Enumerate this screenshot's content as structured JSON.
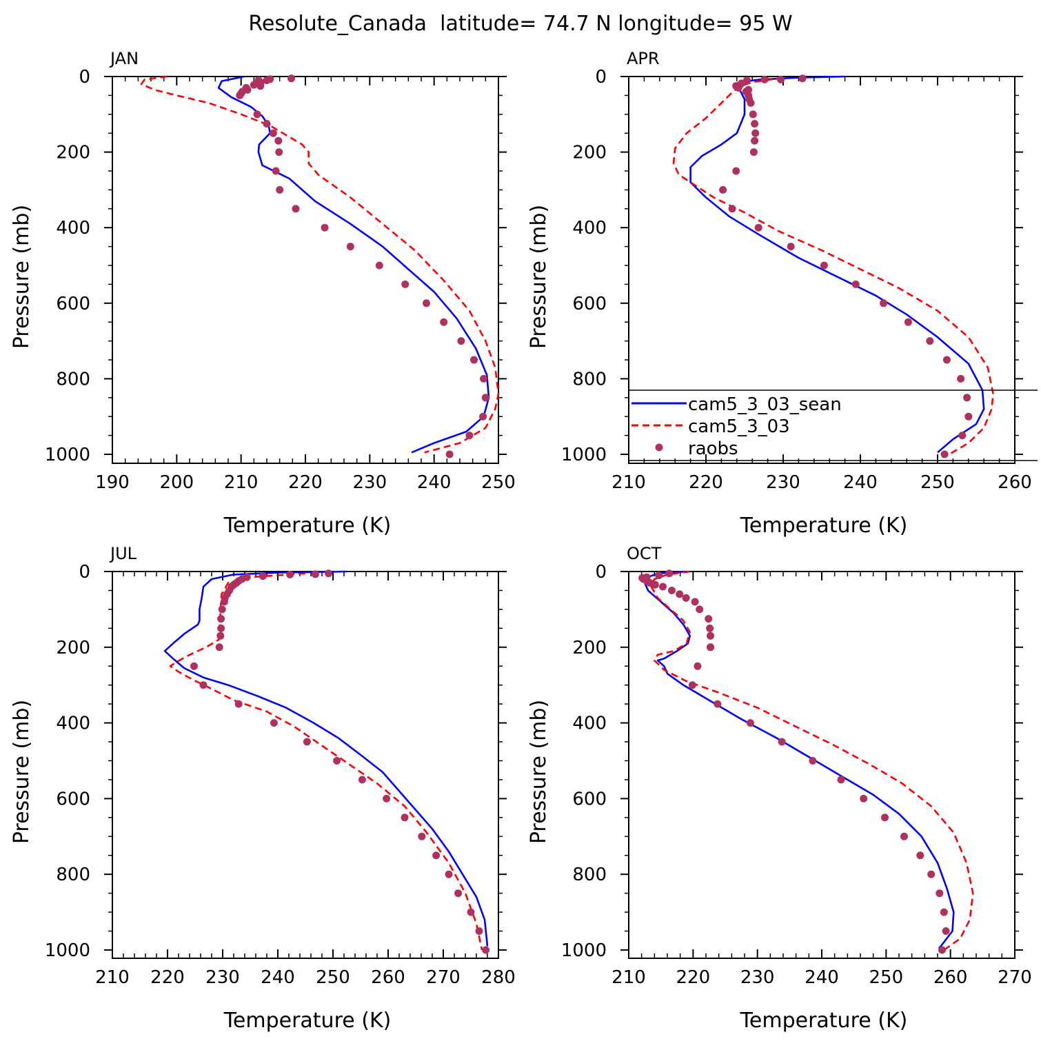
{
  "figure_title": "Resolute_Canada  latitude= 74.7 N longitude= 95 W",
  "colors": {
    "series1": "#0000ff",
    "series2": "#ff0000",
    "obs": "#b03060",
    "axis": "#000000"
  },
  "legend": [
    {
      "label": "cam5_3_03_sean",
      "style": "solid"
    },
    {
      "label": "cam5_3_03",
      "style": "dashed"
    },
    {
      "label": "raobs",
      "style": "dots"
    }
  ],
  "chart_data": [
    {
      "type": "line",
      "title": "JAN",
      "xlabel": "Temperature (K)",
      "ylabel": "Pressure (mb)",
      "xlim": [
        190,
        250
      ],
      "ylim": [
        1000,
        0
      ],
      "xticks": [
        "190",
        "200",
        "210",
        "220",
        "230",
        "240",
        "250"
      ],
      "yticks": [
        "0",
        "200",
        "400",
        "600",
        "800",
        "1000"
      ],
      "series": [
        {
          "name": "cam5_3_03_sean",
          "x": [
            210.5,
            207,
            206.5,
            208.5,
            211.5,
            213.3,
            214.3,
            214.5,
            212.8,
            212.7,
            213.3,
            217.5,
            221.5,
            227,
            232,
            236,
            240,
            243.5,
            246.5,
            248.2,
            248.5,
            247.7,
            245,
            240,
            236.5
          ],
          "y": [
            0,
            12,
            30,
            55,
            80,
            105,
            130,
            150,
            180,
            200,
            235,
            270,
            330,
            390,
            450,
            510,
            570,
            640,
            720,
            790,
            850,
            900,
            940,
            970,
            995
          ]
        },
        {
          "name": "cam5_3_03",
          "x": [
            198.5,
            195,
            194.5,
            196.5,
            200,
            205,
            210,
            214.5,
            217.5,
            219.5,
            220.5,
            220.5,
            222,
            227,
            232,
            237,
            241.5,
            245.5,
            248,
            249.5,
            250,
            249.5,
            248,
            244,
            238.5
          ],
          "y": [
            0,
            8,
            20,
            35,
            50,
            70,
            100,
            130,
            160,
            180,
            200,
            230,
            260,
            320,
            390,
            460,
            540,
            620,
            700,
            770,
            840,
            880,
            930,
            970,
            995
          ]
        }
      ],
      "obs": {
        "x": [
          217.8,
          214.5,
          214,
          212.7,
          213,
          212,
          213,
          213,
          210.8,
          211,
          210.2,
          210,
          209.8,
          212.5,
          214,
          215,
          215.8,
          215.9,
          215.4,
          216,
          218.5,
          223,
          227,
          231.5,
          235.5,
          238.8,
          241.5,
          244.2,
          246.2,
          247.7,
          248,
          247.6,
          245.5,
          242.4
        ],
        "y": [
          5,
          7,
          10,
          10,
          15,
          22,
          20,
          25,
          30,
          35,
          40,
          45,
          50,
          100,
          125,
          150,
          170,
          200,
          250,
          300,
          350,
          400,
          450,
          500,
          550,
          600,
          650,
          700,
          750,
          800,
          850,
          900,
          950,
          1000
        ]
      }
    },
    {
      "type": "line",
      "title": "APR",
      "xlabel": "Temperature (K)",
      "ylabel": "Pressure (mb)",
      "xlim": [
        210,
        260
      ],
      "ylim": [
        1000,
        0
      ],
      "xticks": [
        "210",
        "220",
        "230",
        "240",
        "250",
        "260"
      ],
      "yticks": [
        "0",
        "200",
        "400",
        "600",
        "800",
        "1000"
      ],
      "series": [
        {
          "name": "cam5_3_03_sean",
          "x": [
            238,
            232,
            227,
            224.3,
            224,
            224.5,
            225,
            225,
            224,
            222,
            219.5,
            218,
            218,
            220,
            223,
            227,
            232,
            237,
            242,
            246,
            250,
            254,
            255.8,
            256,
            255,
            252,
            250
          ],
          "y": [
            0,
            3,
            8,
            15,
            25,
            40,
            60,
            100,
            150,
            180,
            210,
            240,
            280,
            320,
            370,
            420,
            480,
            530,
            580,
            630,
            690,
            760,
            830,
            880,
            920,
            960,
            995
          ]
        },
        {
          "name": "cam5_3_03",
          "x": [
            230,
            226,
            224.5,
            223.5,
            222,
            220,
            217.5,
            216,
            215.8,
            216.5,
            218,
            221,
            225,
            229.5,
            235,
            240,
            245,
            250,
            254,
            256.5,
            257.2,
            257,
            256,
            254,
            251.5
          ],
          "y": [
            3,
            15,
            25,
            40,
            70,
            110,
            150,
            190,
            230,
            260,
            280,
            320,
            360,
            410,
            460,
            510,
            560,
            620,
            690,
            770,
            840,
            880,
            930,
            970,
            1000
          ]
        }
      ],
      "obs": {
        "x": [
          232.5,
          229.7,
          227.6,
          225.3,
          224.6,
          224.4,
          223.9,
          224.2,
          225.5,
          225.2,
          225.5,
          225.6,
          225.8,
          226.1,
          226.3,
          226.4,
          226.3,
          226.2,
          223.9,
          222.2,
          223.4,
          226.8,
          231,
          235.3,
          239.4,
          243,
          246.2,
          249,
          251.2,
          253,
          253.8,
          254,
          253.2,
          250.9
        ],
        "y": [
          5,
          8,
          8,
          10,
          18,
          22,
          25,
          30,
          35,
          40,
          50,
          60,
          70,
          100,
          125,
          150,
          170,
          200,
          250,
          300,
          350,
          400,
          450,
          500,
          550,
          600,
          650,
          700,
          750,
          800,
          850,
          900,
          950,
          1000
        ]
      }
    },
    {
      "type": "line",
      "title": "JUL",
      "xlabel": "Temperature (K)",
      "ylabel": "Pressure (mb)",
      "xlim": [
        210,
        280
      ],
      "ylim": [
        1000,
        0
      ],
      "xticks": [
        "210",
        "220",
        "230",
        "240",
        "250",
        "260",
        "270",
        "280"
      ],
      "yticks": [
        "0",
        "200",
        "400",
        "600",
        "800",
        "1000"
      ],
      "series": [
        {
          "name": "cam5_3_03_sean",
          "x": [
            252.5,
            240,
            232,
            228,
            226.5,
            226.2,
            225.8,
            225.8,
            225.5,
            223,
            221,
            219.5,
            221,
            223,
            226.5,
            231,
            236.5,
            241.5,
            246.5,
            251,
            255.5,
            259,
            262,
            265,
            268,
            271,
            273.5,
            276,
            277.5,
            278
          ],
          "y": [
            0,
            3,
            8,
            20,
            40,
            70,
            100,
            130,
            140,
            165,
            190,
            210,
            230,
            255,
            280,
            300,
            330,
            360,
            400,
            440,
            490,
            530,
            580,
            630,
            680,
            740,
            800,
            860,
            920,
            990
          ]
        },
        {
          "name": "cam5_3_03",
          "x": [
            245,
            235,
            231,
            229.8,
            229.6,
            229.5,
            229.4,
            229.3,
            227,
            224,
            221.5,
            220.5,
            222,
            224.5,
            228,
            232,
            238,
            243,
            248,
            253,
            258,
            263,
            267,
            271,
            274,
            276,
            277
          ],
          "y": [
            5,
            15,
            30,
            60,
            100,
            140,
            160,
            180,
            200,
            220,
            240,
            250,
            265,
            285,
            310,
            340,
            370,
            410,
            460,
            510,
            560,
            620,
            690,
            770,
            850,
            930,
            1000
          ]
        }
      ],
      "obs": {
        "x": [
          249.2,
          246.8,
          242.2,
          237.3,
          234.4,
          233.5,
          232.9,
          232.5,
          232,
          231.6,
          231.2,
          230.8,
          230.4,
          230.3,
          229.9,
          229.7,
          229.7,
          229.6,
          229.4,
          224.8,
          226.5,
          232.9,
          239.3,
          245.3,
          250.7,
          255.3,
          259.7,
          263,
          266.1,
          268.7,
          271,
          272.7,
          275,
          276.5,
          277.7
        ],
        "y": [
          5,
          7,
          8,
          12,
          15,
          20,
          25,
          30,
          35,
          40,
          50,
          60,
          70,
          80,
          100,
          125,
          150,
          170,
          200,
          250,
          300,
          350,
          400,
          450,
          500,
          550,
          600,
          650,
          700,
          750,
          800,
          850,
          900,
          950,
          1000
        ]
      }
    },
    {
      "type": "line",
      "title": "OCT",
      "xlabel": "Temperature (K)",
      "ylabel": "Pressure (mb)",
      "xlim": [
        210,
        270
      ],
      "ylim": [
        1000,
        0
      ],
      "xticks": [
        "210",
        "220",
        "230",
        "240",
        "250",
        "260",
        "270"
      ],
      "yticks": [
        "0",
        "200",
        "400",
        "600",
        "800",
        "1000"
      ],
      "series": [
        {
          "name": "cam5_3_03_sean",
          "x": [
            219,
            214.5,
            213,
            212.5,
            213,
            215,
            217,
            218.5,
            219.5,
            219.2,
            217.5,
            215.5,
            214.5,
            215.5,
            216,
            218.5,
            222.5,
            227.5,
            233,
            238,
            243,
            248,
            252,
            255.5,
            258,
            259.5,
            260.5,
            260.3,
            258.5,
            258.2
          ],
          "y": [
            0,
            5,
            15,
            30,
            50,
            80,
            110,
            140,
            170,
            190,
            210,
            230,
            235,
            250,
            270,
            300,
            340,
            390,
            440,
            490,
            540,
            590,
            640,
            700,
            770,
            840,
            900,
            950,
            990,
            995
          ]
        },
        {
          "name": "cam5_3_03",
          "x": [
            219.5,
            216,
            214,
            213.5,
            214.5,
            216.5,
            218.5,
            219.5,
            219,
            217,
            214.5,
            214,
            215.5,
            219,
            224,
            230,
            236,
            242,
            247.5,
            252.5,
            257,
            260.5,
            262.5,
            263.5,
            263,
            261.5,
            259
          ],
          "y": [
            0,
            8,
            20,
            40,
            70,
            100,
            130,
            160,
            190,
            210,
            220,
            235,
            260,
            290,
            320,
            360,
            410,
            460,
            510,
            560,
            620,
            690,
            770,
            850,
            920,
            970,
            1000
          ]
        }
      ],
      "obs": {
        "x": [
          216.3,
          214.7,
          212.8,
          212.1,
          212.3,
          212.8,
          213.3,
          214.1,
          215.3,
          216.7,
          217.9,
          218.9,
          220.3,
          221,
          222.4,
          222.6,
          222.7,
          222.7,
          222.7,
          220.7,
          219.9,
          223.8,
          228.9,
          233.8,
          238.6,
          243,
          246.5,
          249.8,
          252.8,
          255.3,
          257,
          258.3,
          259,
          259.3,
          258.7
        ],
        "y": [
          5,
          10,
          15,
          17,
          20,
          25,
          30,
          35,
          40,
          50,
          60,
          70,
          80,
          100,
          125,
          150,
          170,
          200,
          200,
          250,
          300,
          350,
          400,
          450,
          500,
          550,
          600,
          650,
          700,
          750,
          800,
          850,
          900,
          950,
          1000
        ]
      }
    }
  ]
}
